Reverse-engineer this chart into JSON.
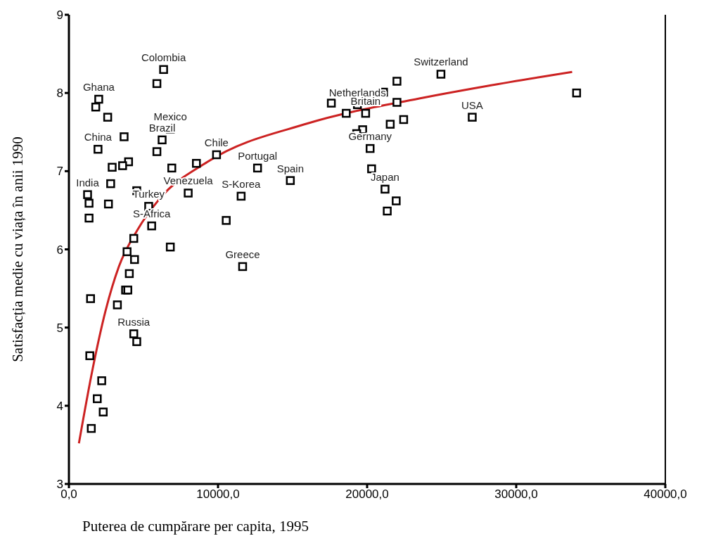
{
  "chart_data": {
    "type": "scatter",
    "xlabel": "Puterea de cumpărare per capita, 1995",
    "ylabel": "Satisfacția medie cu viața în anii 1990",
    "xlim": [
      0,
      40000
    ],
    "xticks": [
      {
        "value": 0,
        "label": "0,0"
      },
      {
        "value": 10000,
        "label": "10000,0"
      },
      {
        "value": 20000,
        "label": "20000,0"
      },
      {
        "value": 30000,
        "label": "30000,0"
      },
      {
        "value": 40000,
        "label": "40000,0"
      }
    ],
    "ylim": [
      3,
      9
    ],
    "yticks": [
      3,
      4,
      5,
      6,
      7,
      8,
      9
    ],
    "series": [
      {
        "marker": "square",
        "color": "#000000",
        "x": [
          6350,
          5900,
          2000,
          1800,
          2600,
          6800,
          3700,
          6250,
          1950,
          5900,
          4000,
          3600,
          2900,
          6900,
          2800,
          4550,
          8000,
          1250,
          1350,
          2650,
          1350,
          5350,
          5550,
          4350,
          6800,
          3900,
          4400,
          4050,
          3800,
          3950,
          1450,
          3250,
          4350,
          4550,
          1400,
          2200,
          1900,
          2300,
          1500,
          8550,
          9900,
          12650,
          14850,
          11550,
          10550,
          11650,
          24950,
          22000,
          21100,
          17600,
          19350,
          22000,
          18600,
          19900,
          22450,
          21550,
          19700,
          19300,
          20200,
          20300,
          21200,
          21950,
          21350,
          27050,
          34050
        ],
        "values": [
          8.3,
          8.12,
          7.92,
          7.82,
          7.69,
          7.54,
          7.44,
          7.4,
          7.28,
          7.25,
          7.12,
          7.07,
          7.05,
          7.04,
          6.84,
          6.75,
          6.72,
          6.7,
          6.59,
          6.58,
          6.4,
          6.55,
          6.3,
          6.14,
          6.03,
          5.97,
          5.87,
          5.69,
          5.48,
          5.48,
          5.37,
          5.29,
          4.92,
          4.82,
          4.64,
          4.32,
          4.09,
          3.92,
          3.71,
          7.1,
          7.21,
          7.04,
          6.88,
          6.68,
          6.37,
          5.78,
          8.24,
          8.15,
          8.01,
          7.87,
          7.85,
          7.88,
          7.74,
          7.74,
          7.66,
          7.6,
          7.53,
          7.48,
          7.29,
          7.03,
          6.77,
          6.62,
          6.49,
          7.69,
          8.0
        ]
      },
      {
        "type": "line",
        "color": "#cc2222",
        "x": [
          670,
          1600,
          2450,
          3350,
          4600,
          6050,
          9300,
          16000,
          23500,
          28050,
          33750
        ],
        "values": [
          3.52,
          4.48,
          5.21,
          5.78,
          6.25,
          6.64,
          7.12,
          7.61,
          7.93,
          8.09,
          8.27
        ]
      }
    ],
    "annotations": [
      {
        "text": "Colombia",
        "x": 6350,
        "y": 8.3
      },
      {
        "text": "Ghana",
        "x": 2000,
        "y": 7.92
      },
      {
        "text": "Mexico",
        "x": 6800,
        "y": 7.54
      },
      {
        "text": "Brazil",
        "x": 6250,
        "y": 7.4
      },
      {
        "text": "China",
        "x": 1950,
        "y": 7.28
      },
      {
        "text": "India",
        "x": 1250,
        "y": 6.7
      },
      {
        "text": "Turkey",
        "x": 5350,
        "y": 6.55
      },
      {
        "text": "S-Africa",
        "x": 5550,
        "y": 6.3
      },
      {
        "text": "Russia",
        "x": 4350,
        "y": 4.92
      },
      {
        "text": "Venezuela",
        "x": 8000,
        "y": 6.72
      },
      {
        "text": "Chile",
        "x": 9900,
        "y": 7.21
      },
      {
        "text": "Portugal",
        "x": 12650,
        "y": 7.04
      },
      {
        "text": "Spain",
        "x": 14850,
        "y": 6.88
      },
      {
        "text": "S-Korea",
        "x": 11550,
        "y": 6.68
      },
      {
        "text": "Greece",
        "x": 11650,
        "y": 5.78
      },
      {
        "text": "Switzerland",
        "x": 24950,
        "y": 8.24
      },
      {
        "text": "Netherlands",
        "x": 19350,
        "y": 7.85
      },
      {
        "text": "Britain",
        "x": 19900,
        "y": 7.74
      },
      {
        "text": "Germany",
        "x": 20200,
        "y": 7.29
      },
      {
        "text": "Japan",
        "x": 21200,
        "y": 6.77
      },
      {
        "text": "USA",
        "x": 27050,
        "y": 7.69
      }
    ]
  }
}
